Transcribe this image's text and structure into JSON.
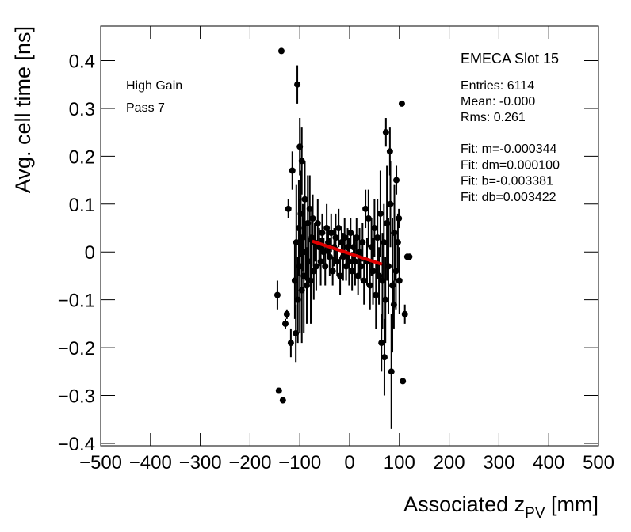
{
  "chart_data": {
    "type": "scatter",
    "y_label": "Avg. cell time [ns]",
    "x_label": {
      "main": "Associated z",
      "sub": "PV",
      "after": " [mm]"
    },
    "title": "EMECA Slot 15",
    "annotations": [
      "High Gain",
      "Pass 7"
    ],
    "stats": [
      "Entries: 6114",
      "Mean: -0.000",
      "Rms: 0.261"
    ],
    "fit_text": [
      "Fit: m=-0.000344",
      "Fit: dm=0.000100",
      "Fit: b=-0.003381",
      "Fit: db=0.003422"
    ],
    "fit": {
      "m": -0.000344,
      "b": -0.003381,
      "range": [
        -75,
        65
      ],
      "color": "#e00000"
    },
    "color": "#000000",
    "xlim": [
      -500,
      500
    ],
    "ylim": [
      -0.405,
      0.472
    ],
    "xticks": [
      {
        "value": -500,
        "label": "−500"
      },
      {
        "value": -400,
        "label": "−400"
      },
      {
        "value": -300,
        "label": "−300"
      },
      {
        "value": -200,
        "label": "−200"
      },
      {
        "value": -100,
        "label": "−100"
      },
      0,
      100,
      200,
      300,
      400,
      500
    ],
    "yticks": [
      {
        "value": -0.4,
        "label": "−0.4"
      },
      {
        "value": -0.3,
        "label": "−0.3"
      },
      {
        "value": -0.2,
        "label": "−0.2"
      },
      {
        "value": -0.1,
        "label": "−0.1"
      },
      0,
      0.1,
      0.2,
      0.3,
      0.4
    ],
    "x": [
      -110,
      -107,
      -104,
      -102,
      -100,
      -98,
      -96,
      -94,
      -92,
      -90,
      -88,
      -86,
      -84,
      -82,
      -80,
      -78,
      -76,
      -74,
      -72,
      -70,
      -67,
      -64,
      -61,
      -58,
      -55,
      -52,
      -49,
      -46,
      -43,
      -40,
      -37,
      -34,
      -31,
      -28,
      -25,
      -22,
      -19,
      -16,
      -13,
      -10,
      -7,
      -4,
      -1,
      2,
      5,
      8,
      11,
      14,
      17,
      20,
      23,
      26,
      29,
      32,
      35,
      38,
      41,
      44,
      47,
      50,
      53,
      56,
      59,
      62,
      66,
      69,
      72,
      75,
      78,
      82,
      86,
      90,
      93,
      97,
      100,
      -145,
      -137,
      -142,
      -134,
      -129,
      -126,
      -123,
      -118,
      -115,
      -108,
      -105,
      -100,
      -96,
      73,
      81,
      84,
      94,
      99,
      105,
      107,
      111,
      116,
      120,
      89,
      70,
      64
    ],
    "values": [
      -0.06,
      0.02,
      -0.1,
      0.05,
      -0.03,
      0.08,
      -0.08,
      0.03,
      -0.05,
      0.11,
      0.0,
      -0.07,
      0.06,
      -0.02,
      0.09,
      -0.06,
      0.03,
      0.07,
      -0.04,
      0.02,
      -0.03,
      0.06,
      0.01,
      -0.02,
      0.04,
      0.0,
      -0.03,
      0.05,
      0.02,
      -0.01,
      0.04,
      -0.04,
      0.01,
      0.03,
      -0.02,
      0.05,
      -0.05,
      0.02,
      -0.01,
      0.03,
      -0.03,
      0.01,
      -0.02,
      0.04,
      -0.04,
      0.01,
      -0.02,
      0.03,
      -0.05,
      0.0,
      -0.03,
      0.02,
      -0.06,
      0.09,
      -0.02,
      0.07,
      -0.07,
      0.01,
      -0.04,
      0.05,
      -0.09,
      0.03,
      -0.05,
      0.08,
      -0.06,
      0.02,
      -0.1,
      0.06,
      -0.03,
      0.1,
      -0.07,
      0.04,
      -0.04,
      0.02,
      -0.06,
      -0.09,
      0.42,
      -0.29,
      -0.31,
      -0.15,
      -0.13,
      0.09,
      -0.19,
      0.17,
      -0.17,
      0.35,
      0.22,
      0.19,
      0.25,
      0.21,
      -0.25,
      0.15,
      0.07,
      0.31,
      -0.27,
      -0.13,
      -0.01,
      -0.01,
      -0.11,
      -0.22,
      -0.19
    ],
    "errors": [
      0.08,
      0.12,
      0.09,
      0.1,
      0.14,
      0.09,
      0.11,
      0.07,
      0.12,
      0.08,
      0.06,
      0.08,
      0.1,
      0.05,
      0.07,
      0.09,
      0.06,
      0.05,
      0.06,
      0.04,
      0.05,
      0.05,
      0.04,
      0.05,
      0.04,
      0.03,
      0.04,
      0.05,
      0.03,
      0.04,
      0.04,
      0.03,
      0.04,
      0.05,
      0.03,
      0.04,
      0.04,
      0.03,
      0.05,
      0.04,
      0.03,
      0.04,
      0.05,
      0.03,
      0.04,
      0.03,
      0.05,
      0.04,
      0.04,
      0.05,
      0.03,
      0.04,
      0.05,
      0.04,
      0.05,
      0.06,
      0.05,
      0.06,
      0.07,
      0.06,
      0.07,
      0.08,
      0.06,
      0.09,
      0.1,
      0.08,
      0.09,
      0.12,
      0.1,
      0.09,
      0.14,
      0.1,
      0.08,
      0.06,
      0.07,
      0.03,
      0.005,
      0.005,
      0.005,
      0.01,
      0.01,
      0.02,
      0.03,
      0.04,
      0.06,
      0.04,
      0.06,
      0.07,
      0.03,
      0.05,
      0.12,
      0.03,
      0.02,
      0.005,
      0.005,
      0.02,
      0.005,
      0.005,
      0.05,
      0.08,
      0.06
    ]
  }
}
